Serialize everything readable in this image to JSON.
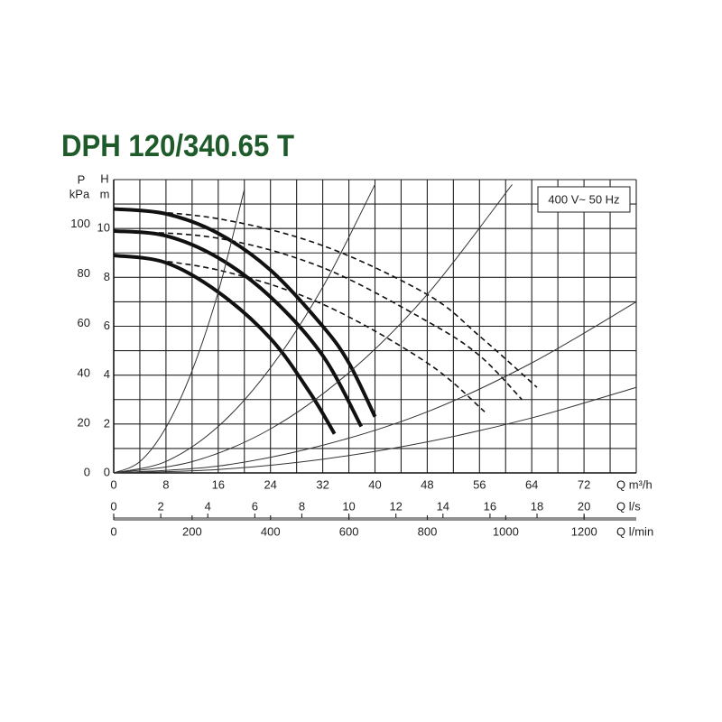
{
  "chart_data": {
    "type": "line",
    "title": "DPH 120/340.65 T",
    "annotation": "400 V~ 50 Hz",
    "ylabel": [
      "H",
      "m"
    ],
    "y2label": [
      "P",
      "kPa"
    ],
    "ylim": [
      0,
      12
    ],
    "yticks": [
      0,
      2,
      4,
      6,
      8,
      10
    ],
    "yminor": [
      1,
      3,
      5,
      7,
      9,
      11,
      12
    ],
    "y2lim": [
      0,
      118
    ],
    "y2ticks": [
      0,
      20,
      40,
      60,
      80,
      100
    ],
    "x_axes": [
      {
        "label": "Q m³/h",
        "lim": [
          0,
          80
        ],
        "ticks": [
          0,
          8,
          16,
          24,
          32,
          40,
          48,
          56,
          64,
          72
        ],
        "minor": [
          4,
          12,
          20,
          28,
          36,
          44,
          52,
          60,
          68,
          76,
          80
        ]
      },
      {
        "label": "Q l/s",
        "lim": [
          0,
          22.22
        ],
        "ticks": [
          0,
          2,
          4,
          6,
          8,
          10,
          12,
          14,
          16,
          18,
          20
        ]
      },
      {
        "label": "Q l/min",
        "lim": [
          0,
          1333
        ],
        "ticks": [
          0,
          200,
          400,
          600,
          800,
          1000,
          1200
        ]
      }
    ],
    "grid": true,
    "series": [
      {
        "color": "#111",
        "width": 4,
        "dash": false,
        "x": [
          0,
          8,
          16,
          24,
          32,
          36,
          40
        ],
        "values": [
          10.8,
          10.6,
          9.8,
          8.3,
          6.0,
          4.5,
          2.3
        ]
      },
      {
        "color": "#111",
        "width": 4,
        "dash": false,
        "x": [
          0,
          8,
          16,
          24,
          32,
          37.9
        ],
        "values": [
          9.9,
          9.7,
          8.8,
          7.2,
          4.8,
          1.9
        ]
      },
      {
        "color": "#111",
        "width": 4,
        "dash": false,
        "x": [
          0,
          8,
          16,
          24,
          30,
          33.8
        ],
        "values": [
          8.9,
          8.6,
          7.4,
          5.5,
          3.3,
          1.6
        ]
      },
      {
        "color": "#111",
        "width": 1.6,
        "dash": true,
        "x": [
          0,
          16,
          32,
          48,
          56,
          64.8
        ],
        "values": [
          10.8,
          10.4,
          9.3,
          7.3,
          5.6,
          3.5
        ]
      },
      {
        "color": "#111",
        "width": 1.6,
        "dash": true,
        "x": [
          0,
          16,
          32,
          48,
          56,
          62.5
        ],
        "values": [
          9.9,
          9.6,
          8.4,
          6.2,
          4.8,
          3.0
        ]
      },
      {
        "color": "#111",
        "width": 1.6,
        "dash": true,
        "x": [
          0,
          16,
          32,
          48,
          56.8
        ],
        "values": [
          8.9,
          8.3,
          6.9,
          4.5,
          2.5
        ]
      },
      {
        "color": "#333",
        "width": 1,
        "dash": false,
        "x": [
          0,
          4,
          8,
          12,
          16,
          20
        ],
        "values": [
          0,
          0.46,
          1.86,
          4.18,
          7.4,
          11.6
        ]
      },
      {
        "color": "#333",
        "width": 1,
        "dash": false,
        "x": [
          0,
          8,
          16,
          24,
          32,
          40
        ],
        "values": [
          0,
          0.47,
          1.9,
          4.3,
          7.6,
          11.8
        ]
      },
      {
        "color": "#333",
        "width": 1,
        "dash": false,
        "x": [
          0,
          12,
          24,
          36,
          48,
          61
        ],
        "values": [
          0,
          0.46,
          1.8,
          4.1,
          7.3,
          11.8
        ]
      },
      {
        "color": "#333",
        "width": 1,
        "dash": false,
        "x": [
          0,
          16,
          32,
          48,
          64,
          80
        ],
        "values": [
          0,
          0.28,
          1.13,
          2.5,
          4.5,
          7.0
        ]
      },
      {
        "color": "#333",
        "width": 1,
        "dash": false,
        "x": [
          0,
          16,
          32,
          48,
          64,
          80
        ],
        "values": [
          0,
          0.14,
          0.56,
          1.27,
          2.25,
          3.5
        ]
      }
    ]
  }
}
